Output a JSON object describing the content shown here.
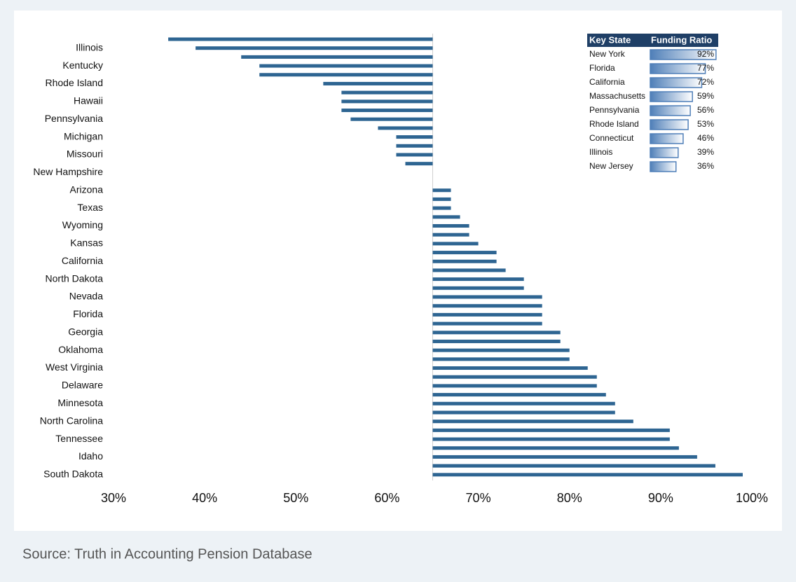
{
  "chart_data": {
    "type": "bar",
    "orientation": "horizontal",
    "color": "#2e6592",
    "baseline": 65,
    "categories": [
      null,
      "Illinois",
      null,
      "Kentucky",
      null,
      "Rhode Island",
      null,
      "Hawaii",
      null,
      "Pennsylvania",
      null,
      "Michigan",
      null,
      "Missouri",
      null,
      "New Hampshire",
      null,
      "Arizona",
      null,
      "Texas",
      null,
      "Wyoming",
      null,
      "Kansas",
      null,
      "California",
      null,
      "North Dakota",
      null,
      "Nevada",
      null,
      "Florida",
      null,
      "Georgia",
      null,
      "Oklahoma",
      null,
      "West Virginia",
      null,
      "Delaware",
      null,
      "Minnesota",
      null,
      "North Carolina",
      null,
      "Tennessee",
      null,
      "Idaho",
      null,
      "South Dakota"
    ],
    "values": [
      36,
      39,
      44,
      46,
      46,
      53,
      55,
      55,
      55,
      56,
      59,
      61,
      61,
      61,
      62,
      65,
      65,
      67,
      67,
      67,
      68,
      69,
      69,
      70,
      72,
      72,
      73,
      75,
      75,
      77,
      77,
      77,
      77,
      79,
      79,
      80,
      80,
      82,
      83,
      83,
      84,
      85,
      85,
      87,
      91,
      91,
      92,
      94,
      96,
      99
    ],
    "xlim": [
      30,
      100
    ],
    "xticks": [
      {
        "value": 30,
        "label": "30%"
      },
      {
        "value": 40,
        "label": "40%"
      },
      {
        "value": 50,
        "label": "50%"
      },
      {
        "value": 60,
        "label": "60%"
      },
      {
        "value": 70,
        "label": "70%"
      },
      {
        "value": 80,
        "label": "80%"
      },
      {
        "value": 90,
        "label": "90%"
      },
      {
        "value": 100,
        "label": "100%"
      }
    ],
    "inset": {
      "headers": [
        "Key State",
        "Funding Ratio"
      ],
      "categories": [
        "New York",
        "Florida",
        "California",
        "Massachusetts",
        "Pennsylvania",
        "Rhode Island",
        "Connecticut",
        "Illinois",
        "New Jersey"
      ],
      "values": [
        92,
        77,
        72,
        59,
        56,
        53,
        46,
        39,
        36
      ],
      "value_labels": [
        "92%",
        "77%",
        "72%",
        "59%",
        "56%",
        "53%",
        "46%",
        "39%",
        "36%"
      ]
    }
  },
  "source": "Source: Truth in Accounting Pension Database"
}
